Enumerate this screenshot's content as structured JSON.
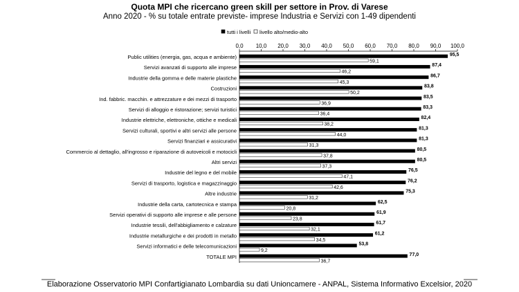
{
  "chart_data": {
    "type": "bar",
    "orientation": "horizontal",
    "title": "Quota MPI che ricercano green skill per settore in Prov. di Varese",
    "subtitle": "Anno 2020 - % su totale entrate previste- imprese Industria e Servizi con 1-49 dipendenti",
    "xlim": [
      0,
      100
    ],
    "x_ticks": [
      "0,0",
      "10,0",
      "20,0",
      "30,0",
      "40,0",
      "50,0",
      "60,0",
      "70,0",
      "80,0",
      "90,0",
      "100,0"
    ],
    "legend_position": "top-right",
    "categories": [
      "Public utilities (energia, gas, acqua e ambiente)",
      "Servizi avanzati di supporto alle imprese",
      "Industrie della gomma e delle materie plastiche",
      "Costruzioni",
      "Ind. fabbric. macchin. e attrezzature e dei mezzi di trasporto",
      "Servizi di alloggio e ristorazione; servizi turistici",
      "Industrie elettriche, elettroniche, ottiche e medicali",
      "Servizi culturali, sportivi e altri servizi alle persone",
      "Servizi finanziari e assicurativi",
      "Commercio al dettaglio, all'ingrosso e riparazione di autoveicoli e motocicli",
      "Altri servizi",
      "Industrie del legno e del mobile",
      "Servizi di trasporto, logistica e magazzinaggio",
      "Altre industrie",
      "Industrie della carta, cartotecnica e stampa",
      "Servizi operativi di supporto alle imprese e alle persone",
      "Industrie tessili, dell'abbigliamento e calzature",
      "Industrie metallurgiche e dei prodotti in metallo",
      "Servizi informatici e delle telecomunicazioni",
      "TOTALE MPI"
    ],
    "series": [
      {
        "name": "tutti i livelli",
        "color": "#000000",
        "values": [
          95.5,
          87.4,
          86.7,
          83.8,
          83.5,
          83.3,
          82.4,
          81.3,
          81.3,
          80.5,
          80.5,
          76.5,
          76.2,
          75.3,
          62.5,
          61.9,
          61.7,
          61.2,
          53.8,
          77.0
        ],
        "labels": [
          "95,5",
          "87,4",
          "86,7",
          "83,8",
          "83,5",
          "83,3",
          "82,4",
          "81,3",
          "81,3",
          "80,5",
          "80,5",
          "76,5",
          "76,2",
          "75,3",
          "62,5",
          "61,9",
          "61,7",
          "61,2",
          "53,8",
          "77,0"
        ]
      },
      {
        "name": "livello alto/medio-alto",
        "color": "#ffffff",
        "values": [
          59.1,
          46.2,
          45.3,
          50.2,
          36.9,
          36.4,
          38.2,
          44.0,
          31.3,
          37.8,
          37.3,
          47.1,
          42.6,
          31.2,
          20.8,
          23.8,
          32.1,
          34.5,
          9.2,
          36.7
        ],
        "labels": [
          "59,1",
          "46,2",
          "45,3",
          "50,2",
          "36,9",
          "36,4",
          "38,2",
          "44,0",
          "31,3",
          "37,8",
          "37,3",
          "47,1",
          "42,6",
          "31,2",
          "20,8",
          "23,8",
          "32,1",
          "34,5",
          "9,2",
          "36,7"
        ]
      }
    ]
  },
  "footer": {
    "source": "Elaborazione Osservatorio MPI Confartigianato Lombardia su dati Unioncamere - ANPAL, Sistema Informativo Excelsior, 2020"
  }
}
